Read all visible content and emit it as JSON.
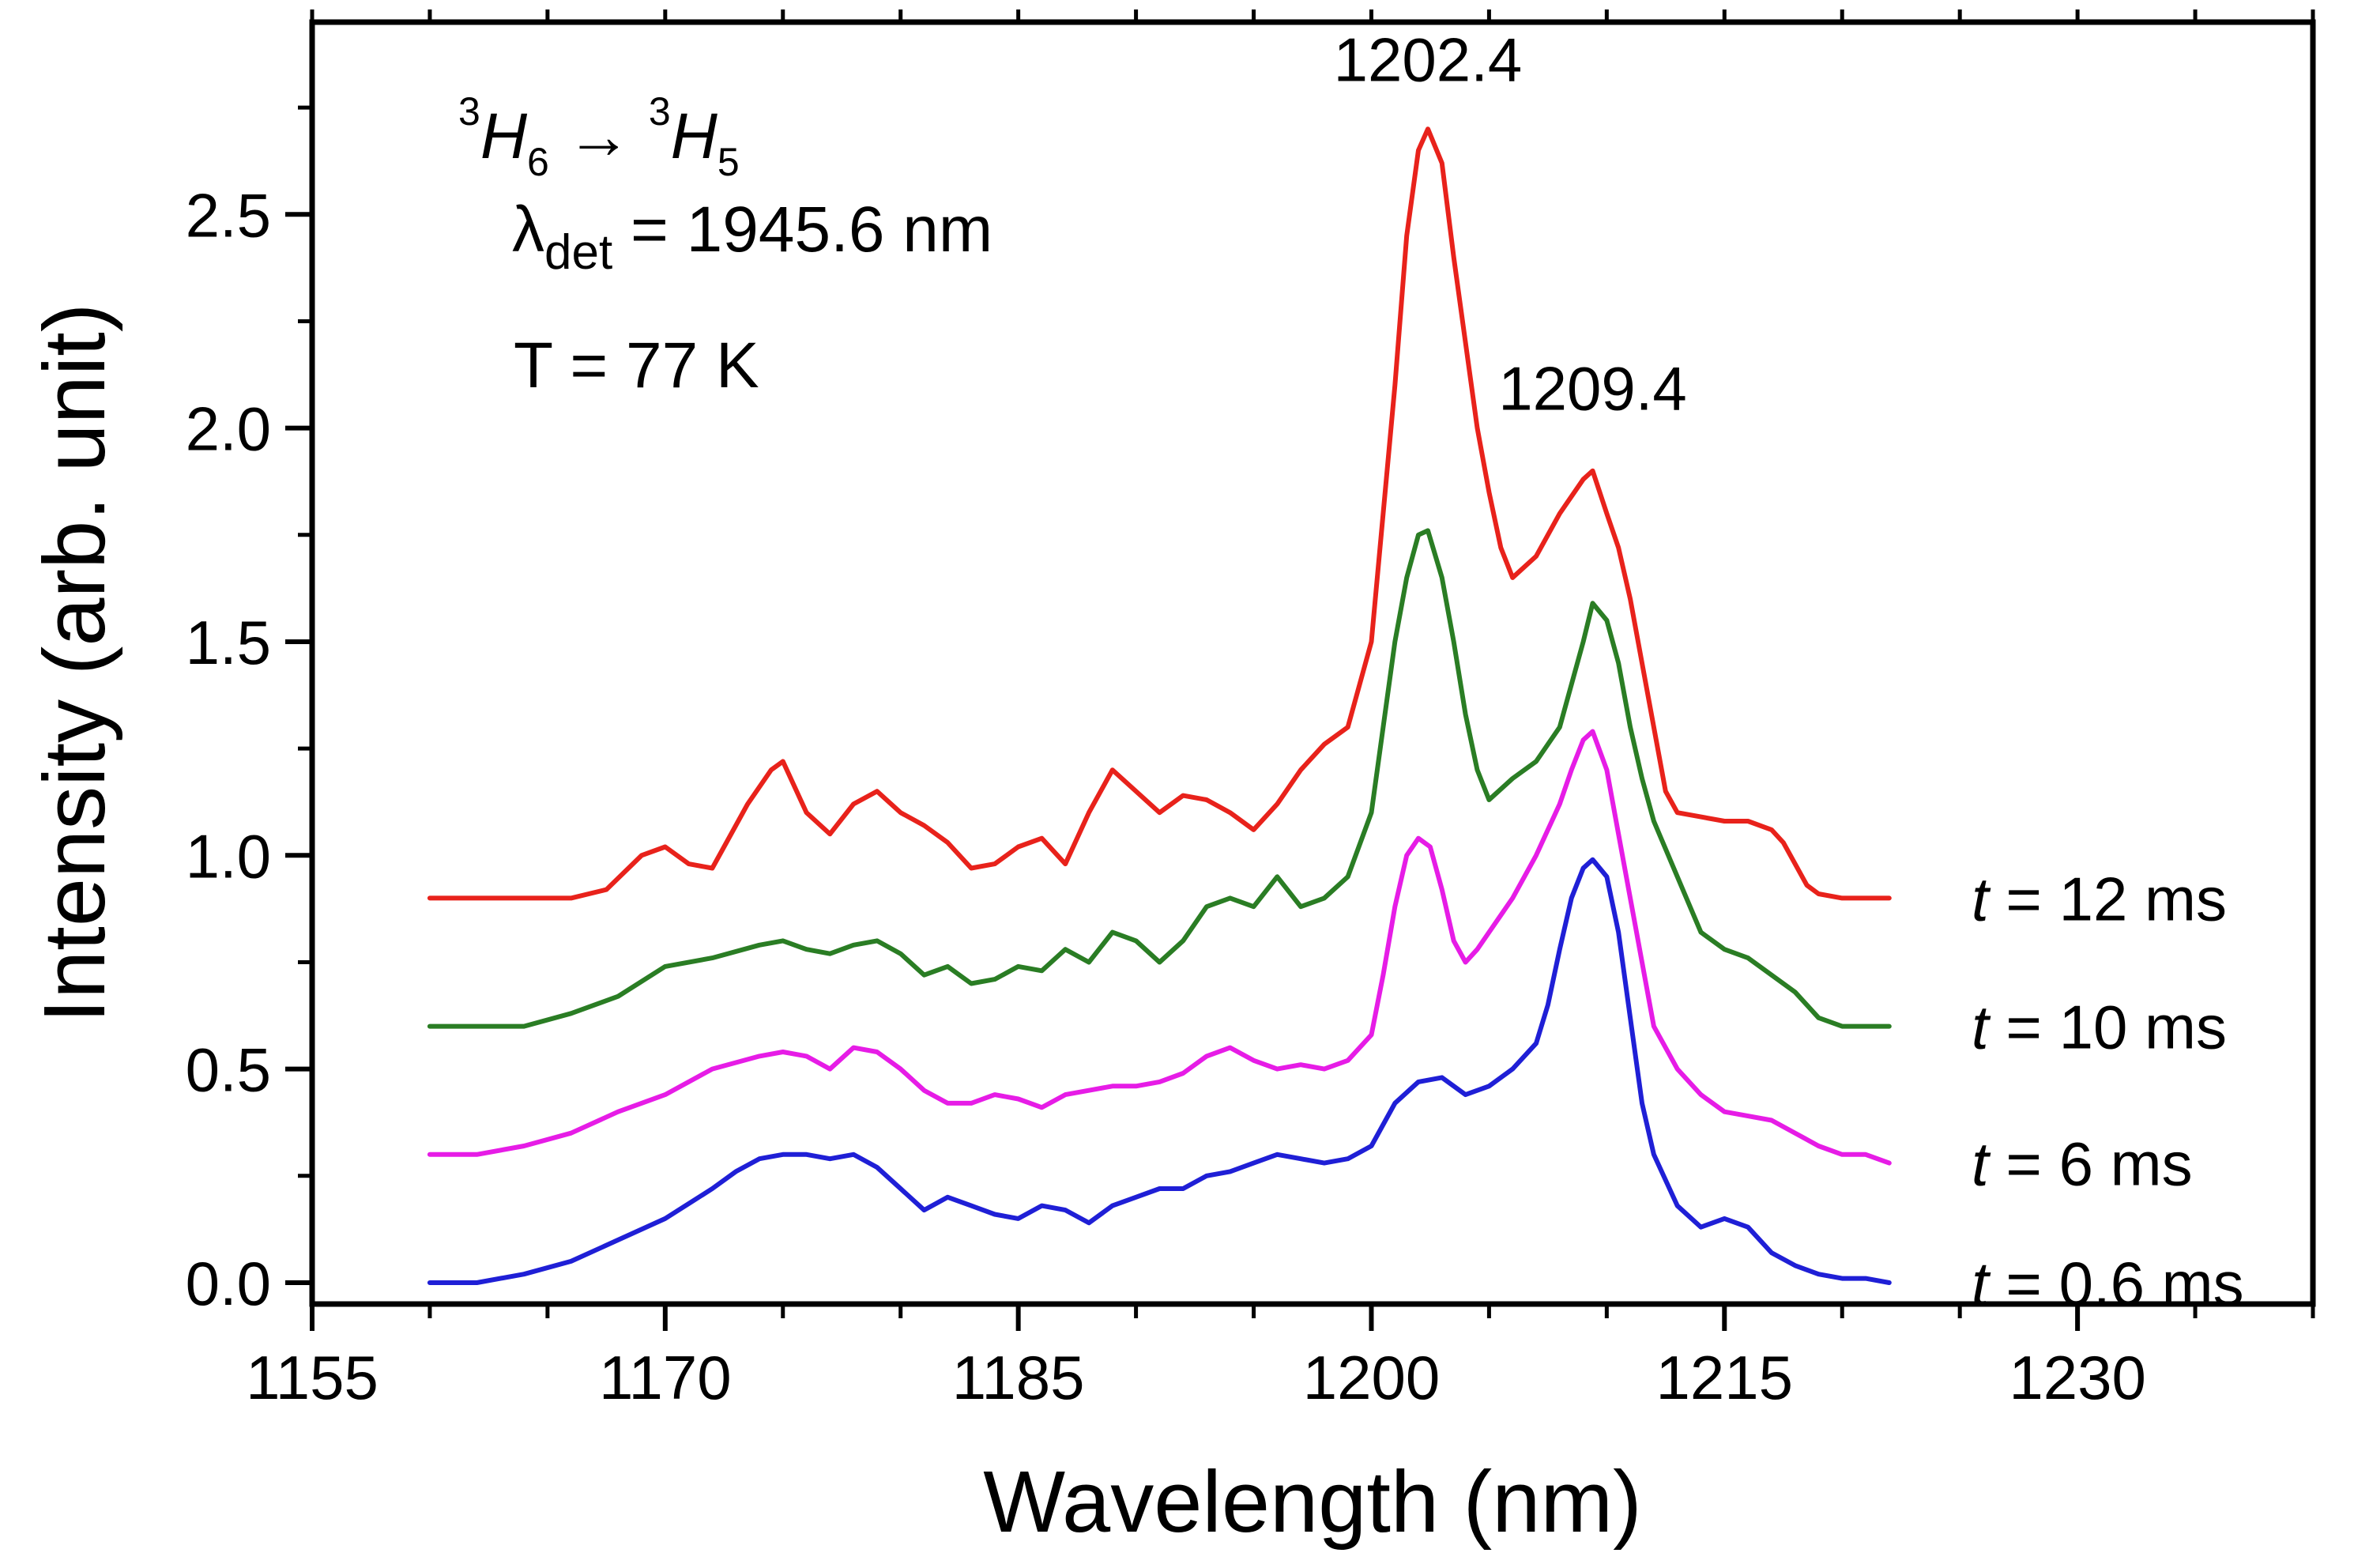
{
  "chart_data": {
    "type": "line",
    "xlabel": "Wavelength (nm)",
    "ylabel": "Intensity (arb. unit)",
    "xlim": [
      1155,
      1240
    ],
    "ylim": [
      -0.05,
      2.95
    ],
    "x_ticks": [
      1155,
      1170,
      1185,
      1200,
      1215,
      1230
    ],
    "y_ticks": [
      0.0,
      0.5,
      1.0,
      1.5,
      2.0,
      2.5
    ],
    "x_tick_labels": [
      "1155",
      "1170",
      "1185",
      "1200",
      "1215",
      "1230"
    ],
    "y_tick_labels": [
      "0.0",
      "0.5",
      "1.0",
      "1.5",
      "2.0",
      "2.5"
    ],
    "grid": false,
    "info": {
      "transition": {
        "lower_sup": "3",
        "lower_main": "H",
        "lower_sub": "6",
        "arrow": "→",
        "upper_sup": "3",
        "upper_main": "H",
        "upper_sub": "5"
      },
      "detection": {
        "symbol": "λ",
        "sub": "det",
        "text": " = 1945.6 nm"
      },
      "temperature": "T = 77 K"
    },
    "annotations": [
      {
        "text": "1202.4",
        "x": 1202.4,
        "y": 2.72
      },
      {
        "text": "1209.4",
        "x": 1209.4,
        "y": 1.95
      }
    ],
    "series": [
      {
        "name": "t = 12 ms",
        "label_t": "t",
        "label_rest": " = 12 ms",
        "color": "#e8221b",
        "x": [
          1160,
          1162,
          1164,
          1166,
          1167.5,
          1169,
          1170,
          1171,
          1172,
          1172.5,
          1173.5,
          1174.5,
          1175,
          1176,
          1177,
          1178,
          1179,
          1180,
          1181,
          1182,
          1183,
          1184,
          1185,
          1186,
          1187,
          1188,
          1189,
          1190,
          1191,
          1192,
          1193,
          1194,
          1195,
          1196,
          1197,
          1198,
          1199,
          1200,
          1200.5,
          1201,
          1201.5,
          1202,
          1202.4,
          1203,
          1203.5,
          1204,
          1204.5,
          1205,
          1205.5,
          1206,
          1207,
          1208,
          1209,
          1209.4,
          1210,
          1210.5,
          1211,
          1211.5,
          1212,
          1212.5,
          1213,
          1214,
          1215,
          1216,
          1217,
          1217.5,
          1218,
          1218.5,
          1219,
          1220,
          1221,
          1222
        ],
        "y": [
          0.9,
          0.9,
          0.9,
          0.9,
          0.92,
          1.0,
          1.02,
          0.98,
          0.97,
          1.02,
          1.12,
          1.2,
          1.22,
          1.1,
          1.05,
          1.12,
          1.15,
          1.1,
          1.07,
          1.03,
          0.97,
          0.98,
          1.02,
          1.04,
          0.98,
          1.1,
          1.2,
          1.15,
          1.1,
          1.14,
          1.13,
          1.1,
          1.06,
          1.12,
          1.2,
          1.26,
          1.3,
          1.5,
          1.8,
          2.1,
          2.45,
          2.65,
          2.7,
          2.62,
          2.4,
          2.2,
          2.0,
          1.85,
          1.72,
          1.65,
          1.7,
          1.8,
          1.88,
          1.9,
          1.8,
          1.72,
          1.6,
          1.45,
          1.3,
          1.15,
          1.1,
          1.09,
          1.08,
          1.08,
          1.06,
          1.03,
          0.98,
          0.93,
          0.91,
          0.9,
          0.9,
          0.9
        ]
      },
      {
        "name": "t = 10 ms",
        "label_t": "t",
        "label_rest": " = 10 ms",
        "color": "#2a7d24",
        "x": [
          1160,
          1162,
          1164,
          1166,
          1168,
          1170,
          1172,
          1174,
          1175,
          1176,
          1177,
          1178,
          1179,
          1180,
          1181,
          1182,
          1183,
          1184,
          1185,
          1186,
          1187,
          1188,
          1189,
          1190,
          1191,
          1192,
          1193,
          1194,
          1195,
          1196,
          1197,
          1198,
          1199,
          1200,
          1200.5,
          1201,
          1201.5,
          1202,
          1202.4,
          1203,
          1203.5,
          1204,
          1204.5,
          1205,
          1206,
          1207,
          1208,
          1208.5,
          1209,
          1209.4,
          1210,
          1210.5,
          1211,
          1211.5,
          1212,
          1213,
          1214,
          1215,
          1216,
          1217,
          1218,
          1219,
          1220,
          1221,
          1222
        ],
        "y": [
          0.6,
          0.6,
          0.6,
          0.63,
          0.67,
          0.74,
          0.76,
          0.79,
          0.8,
          0.78,
          0.77,
          0.79,
          0.8,
          0.77,
          0.72,
          0.74,
          0.7,
          0.71,
          0.74,
          0.73,
          0.78,
          0.75,
          0.82,
          0.8,
          0.75,
          0.8,
          0.88,
          0.9,
          0.88,
          0.95,
          0.88,
          0.9,
          0.95,
          1.1,
          1.3,
          1.5,
          1.65,
          1.75,
          1.76,
          1.65,
          1.5,
          1.33,
          1.2,
          1.13,
          1.18,
          1.22,
          1.3,
          1.4,
          1.5,
          1.59,
          1.55,
          1.45,
          1.3,
          1.18,
          1.08,
          0.95,
          0.82,
          0.78,
          0.76,
          0.72,
          0.68,
          0.62,
          0.6,
          0.6,
          0.6
        ]
      },
      {
        "name": "t = 6 ms",
        "label_t": "t",
        "label_rest": " = 6 ms",
        "color": "#e61ce6",
        "x": [
          1160,
          1162,
          1164,
          1166,
          1168,
          1170,
          1172,
          1174,
          1175,
          1176,
          1177,
          1178,
          1179,
          1180,
          1181,
          1182,
          1183,
          1184,
          1185,
          1186,
          1187,
          1188,
          1189,
          1190,
          1191,
          1192,
          1193,
          1194,
          1195,
          1196,
          1197,
          1198,
          1199,
          1200,
          1200.5,
          1201,
          1201.5,
          1202,
          1202.5,
          1203,
          1203.5,
          1204,
          1204.5,
          1205,
          1205.5,
          1206,
          1207,
          1208,
          1208.5,
          1209,
          1209.4,
          1210,
          1210.5,
          1211,
          1211.5,
          1212,
          1213,
          1214,
          1215,
          1216,
          1217,
          1218,
          1219,
          1220,
          1221,
          1222
        ],
        "y": [
          0.3,
          0.3,
          0.32,
          0.35,
          0.4,
          0.44,
          0.5,
          0.53,
          0.54,
          0.53,
          0.5,
          0.55,
          0.54,
          0.5,
          0.45,
          0.42,
          0.42,
          0.44,
          0.43,
          0.41,
          0.44,
          0.45,
          0.46,
          0.46,
          0.47,
          0.49,
          0.53,
          0.55,
          0.52,
          0.5,
          0.51,
          0.5,
          0.52,
          0.58,
          0.72,
          0.88,
          1.0,
          1.04,
          1.02,
          0.92,
          0.8,
          0.75,
          0.78,
          0.82,
          0.86,
          0.9,
          1.0,
          1.12,
          1.2,
          1.27,
          1.29,
          1.2,
          1.05,
          0.9,
          0.75,
          0.6,
          0.5,
          0.44,
          0.4,
          0.39,
          0.38,
          0.35,
          0.32,
          0.3,
          0.3,
          0.28
        ]
      },
      {
        "name": "t = 0.6 ms",
        "label_t": "t",
        "label_rest": " = 0.6 ms",
        "color": "#1f1fd6",
        "x": [
          1160,
          1162,
          1164,
          1166,
          1168,
          1170,
          1172,
          1173,
          1174,
          1175,
          1176,
          1177,
          1178,
          1179,
          1180,
          1181,
          1182,
          1183,
          1184,
          1185,
          1186,
          1187,
          1188,
          1189,
          1190,
          1191,
          1192,
          1193,
          1194,
          1195,
          1196,
          1197,
          1198,
          1199,
          1200,
          1201,
          1202,
          1203,
          1204,
          1205,
          1206,
          1207,
          1207.5,
          1208,
          1208.5,
          1209,
          1209.4,
          1210,
          1210.5,
          1211,
          1211.5,
          1212,
          1213,
          1214,
          1215,
          1216,
          1217,
          1218,
          1219,
          1220,
          1221,
          1222
        ],
        "y": [
          0.0,
          0.0,
          0.02,
          0.05,
          0.1,
          0.15,
          0.22,
          0.26,
          0.29,
          0.3,
          0.3,
          0.29,
          0.3,
          0.27,
          0.22,
          0.17,
          0.2,
          0.18,
          0.16,
          0.15,
          0.18,
          0.17,
          0.14,
          0.18,
          0.2,
          0.22,
          0.22,
          0.25,
          0.26,
          0.28,
          0.3,
          0.29,
          0.28,
          0.29,
          0.32,
          0.42,
          0.47,
          0.48,
          0.44,
          0.46,
          0.5,
          0.56,
          0.65,
          0.78,
          0.9,
          0.97,
          0.99,
          0.95,
          0.82,
          0.62,
          0.42,
          0.3,
          0.18,
          0.13,
          0.15,
          0.13,
          0.07,
          0.04,
          0.02,
          0.01,
          0.01,
          0.0
        ]
      }
    ]
  }
}
